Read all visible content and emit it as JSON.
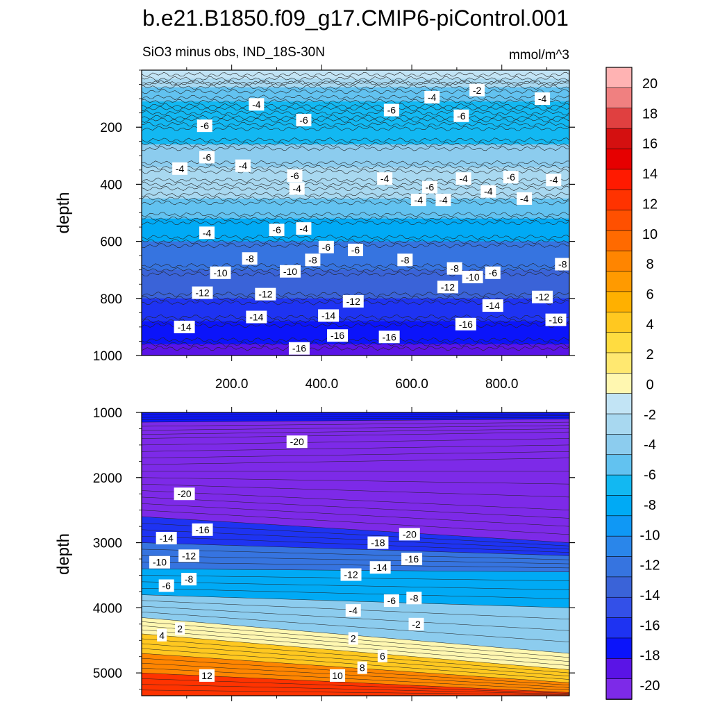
{
  "chart_data": {
    "type": "contour",
    "title": "b.e21.B1850.f09_g17.CMIP6-piControl.001",
    "subtitle": "SiO3 minus obs, IND_18S-30N",
    "units": "mmol/m^3",
    "panels": [
      {
        "name": "upper",
        "ylabel": "depth",
        "ylim": [
          0,
          1000
        ],
        "y_inverted": true,
        "yticks": [
          200,
          400,
          600,
          800,
          1000
        ],
        "ytick_labels": [
          "200",
          "400",
          "600",
          "800",
          "1000"
        ],
        "xlim": [
          0,
          950
        ],
        "xticks": [
          200,
          400,
          600,
          800
        ],
        "xtick_labels": [
          "200.0",
          "400.0",
          "600.0",
          "800.0"
        ],
        "field_description": "depth-dependent bias bands",
        "depth_levels": [
          0,
          30,
          60,
          110,
          150,
          190,
          260,
          340,
          400,
          450,
          520,
          600,
          700,
          800,
          880,
          960,
          1000
        ],
        "depth_values": [
          0,
          -1,
          -3,
          -5,
          -6,
          -7,
          -6,
          -4,
          -2,
          -3,
          -5,
          -8,
          -11,
          -13,
          -15,
          -17,
          -18
        ],
        "contour_labels": [
          {
            "x": 255,
            "y": 120,
            "text": "-4"
          },
          {
            "x": 360,
            "y": 175,
            "text": "-6"
          },
          {
            "x": 555,
            "y": 140,
            "text": "-6"
          },
          {
            "x": 645,
            "y": 95,
            "text": "-4"
          },
          {
            "x": 745,
            "y": 70,
            "text": "-2"
          },
          {
            "x": 890,
            "y": 100,
            "text": "-4"
          },
          {
            "x": 710,
            "y": 160,
            "text": "-6"
          },
          {
            "x": 140,
            "y": 195,
            "text": "-6"
          },
          {
            "x": 145,
            "y": 305,
            "text": "-6"
          },
          {
            "x": 85,
            "y": 345,
            "text": "-4"
          },
          {
            "x": 225,
            "y": 335,
            "text": "-4"
          },
          {
            "x": 345,
            "y": 415,
            "text": "-4"
          },
          {
            "x": 540,
            "y": 380,
            "text": "-4"
          },
          {
            "x": 640,
            "y": 410,
            "text": "-6"
          },
          {
            "x": 820,
            "y": 375,
            "text": "-6"
          },
          {
            "x": 850,
            "y": 450,
            "text": "-4"
          },
          {
            "x": 340,
            "y": 370,
            "text": "-6"
          },
          {
            "x": 615,
            "y": 455,
            "text": "-4"
          },
          {
            "x": 715,
            "y": 380,
            "text": "-4"
          },
          {
            "x": 915,
            "y": 385,
            "text": "-4"
          },
          {
            "x": 360,
            "y": 555,
            "text": "-4"
          },
          {
            "x": 410,
            "y": 620,
            "text": "-6"
          },
          {
            "x": 670,
            "y": 455,
            "text": "-4"
          },
          {
            "x": 770,
            "y": 425,
            "text": "-4"
          },
          {
            "x": 145,
            "y": 570,
            "text": "-4"
          },
          {
            "x": 300,
            "y": 560,
            "text": "-6"
          },
          {
            "x": 475,
            "y": 630,
            "text": "-6"
          },
          {
            "x": 695,
            "y": 695,
            "text": "-8"
          },
          {
            "x": 780,
            "y": 710,
            "text": "-6"
          },
          {
            "x": 240,
            "y": 660,
            "text": "-8"
          },
          {
            "x": 380,
            "y": 665,
            "text": "-8"
          },
          {
            "x": 585,
            "y": 665,
            "text": "-8"
          },
          {
            "x": 935,
            "y": 680,
            "text": "-8"
          },
          {
            "x": 175,
            "y": 710,
            "text": "-10"
          },
          {
            "x": 330,
            "y": 705,
            "text": "-10"
          },
          {
            "x": 735,
            "y": 725,
            "text": "-10"
          },
          {
            "x": 135,
            "y": 780,
            "text": "-12"
          },
          {
            "x": 275,
            "y": 785,
            "text": "-12"
          },
          {
            "x": 470,
            "y": 810,
            "text": "-12"
          },
          {
            "x": 680,
            "y": 760,
            "text": "-12"
          },
          {
            "x": 890,
            "y": 795,
            "text": "-12"
          },
          {
            "x": 415,
            "y": 860,
            "text": "-14"
          },
          {
            "x": 255,
            "y": 865,
            "text": "-14"
          },
          {
            "x": 780,
            "y": 825,
            "text": "-14"
          },
          {
            "x": 95,
            "y": 900,
            "text": "-14"
          },
          {
            "x": 435,
            "y": 930,
            "text": "-16"
          },
          {
            "x": 550,
            "y": 935,
            "text": "-16"
          },
          {
            "x": 720,
            "y": 890,
            "text": "-16"
          },
          {
            "x": 920,
            "y": 875,
            "text": "-16"
          },
          {
            "x": 350,
            "y": 975,
            "text": "-16"
          }
        ]
      },
      {
        "name": "lower",
        "ylabel": "depth",
        "ylim": [
          1000,
          5350
        ],
        "y_inverted": true,
        "yticks": [
          1000,
          2000,
          3000,
          4000,
          5000
        ],
        "ytick_labels": [
          "1000",
          "2000",
          "3000",
          "4000",
          "5000"
        ],
        "xlim": [
          0,
          950
        ],
        "field_description": "tilted bias layers, zero contour deepening from west to east",
        "left_depth_levels": [
          1000,
          1150,
          1400,
          1800,
          2200,
          2600,
          3000,
          3400,
          3800,
          4150,
          4400,
          4700,
          5000,
          5350
        ],
        "right_depth_levels": [
          1000,
          1100,
          1300,
          1700,
          2500,
          3000,
          3200,
          3450,
          4000,
          4700,
          4950,
          5150,
          5300,
          5350
        ],
        "level_values": [
          -17,
          -19,
          -20,
          -20,
          -20,
          -16,
          -12,
          -8,
          -4,
          0,
          4,
          8,
          12,
          14
        ],
        "contour_labels": [
          {
            "x": 345,
            "y": 1450,
            "text": "-20"
          },
          {
            "x": 95,
            "y": 2250,
            "text": "-20"
          },
          {
            "x": 135,
            "y": 2800,
            "text": "-16"
          },
          {
            "x": 55,
            "y": 2930,
            "text": "-14"
          },
          {
            "x": 105,
            "y": 3200,
            "text": "-12"
          },
          {
            "x": 40,
            "y": 3300,
            "text": "-10"
          },
          {
            "x": 105,
            "y": 3560,
            "text": "-8"
          },
          {
            "x": 55,
            "y": 3660,
            "text": "-6"
          },
          {
            "x": 595,
            "y": 2870,
            "text": "-20"
          },
          {
            "x": 525,
            "y": 3000,
            "text": "-18"
          },
          {
            "x": 600,
            "y": 3250,
            "text": "-16"
          },
          {
            "x": 530,
            "y": 3380,
            "text": "-14"
          },
          {
            "x": 465,
            "y": 3490,
            "text": "-12"
          },
          {
            "x": 470,
            "y": 4040,
            "text": "-4"
          },
          {
            "x": 555,
            "y": 3890,
            "text": "-6"
          },
          {
            "x": 605,
            "y": 3850,
            "text": "-8"
          },
          {
            "x": 610,
            "y": 4250,
            "text": "-2"
          },
          {
            "x": 85,
            "y": 4320,
            "text": "2"
          },
          {
            "x": 45,
            "y": 4420,
            "text": "4"
          },
          {
            "x": 470,
            "y": 4470,
            "text": "2"
          },
          {
            "x": 535,
            "y": 4740,
            "text": "6"
          },
          {
            "x": 490,
            "y": 4920,
            "text": "8"
          },
          {
            "x": 435,
            "y": 5040,
            "text": "10"
          },
          {
            "x": 145,
            "y": 5040,
            "text": "12"
          }
        ]
      }
    ],
    "colorbar": {
      "levels": [
        -20,
        -18,
        -16,
        -14,
        -12,
        -10,
        -8,
        -6,
        -4,
        -2,
        0,
        2,
        4,
        6,
        8,
        10,
        12,
        14,
        16,
        18,
        20
      ],
      "tick_labels": [
        "20",
        "18",
        "16",
        "14",
        "12",
        "10",
        "8",
        "6",
        "4",
        "2",
        "0",
        "-2",
        "-4",
        "-6",
        "-8",
        "-10",
        "-12",
        "-14",
        "-16",
        "-18",
        "-20"
      ],
      "colors_top_to_bottom": [
        "#ffb3b3",
        "#f08080",
        "#e04040",
        "#d41010",
        "#e60000",
        "#ff1a00",
        "#ff3300",
        "#ff5000",
        "#ff6a00",
        "#ff8500",
        "#ff9a00",
        "#ffb000",
        "#ffc820",
        "#ffdc40",
        "#ffe870",
        "#fff7b0",
        "#c2e4f5",
        "#a8d8f0",
        "#8cccee",
        "#62c2f0",
        "#12b8f2",
        "#00aaf5",
        "#0f98f5",
        "#2a86ea",
        "#3674e0",
        "#3a63d8",
        "#3350e8",
        "#1e33f2",
        "#0b14fa",
        "#5a14e6",
        "#7d2ae8"
      ]
    }
  }
}
